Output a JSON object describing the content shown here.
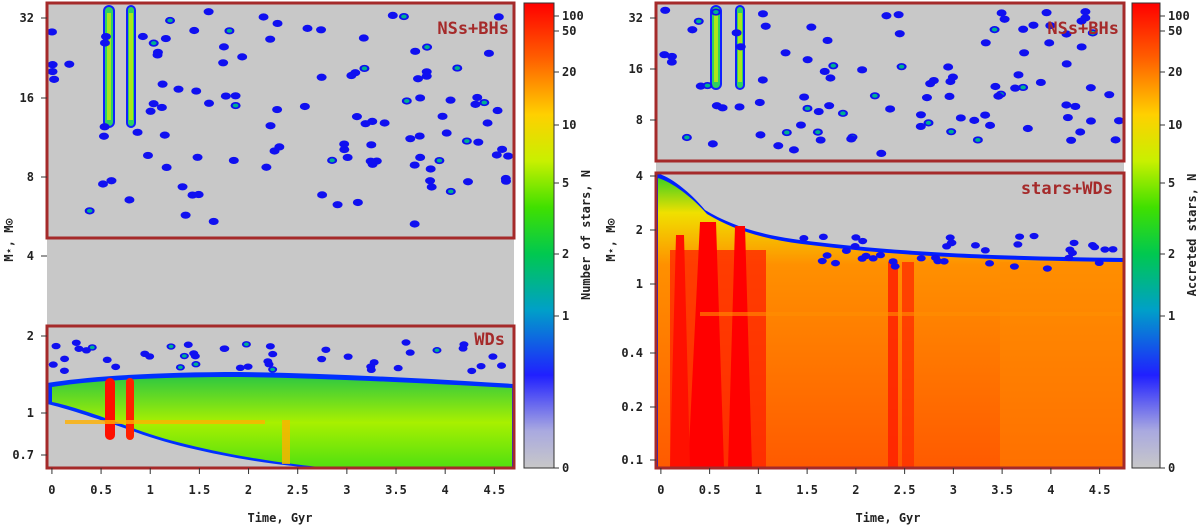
{
  "chart_data": [
    {
      "type": "heatmap",
      "panel": "left",
      "xlabel": "Time, Gyr",
      "ylabel": "M⋆, M⊙",
      "xlim": [
        -0.05,
        4.7
      ],
      "x_ticks": [
        "0",
        "0.5",
        "1",
        "1.5",
        "2",
        "2.5",
        "3",
        "3.5",
        "4",
        "4.5"
      ],
      "x_tick_values": [
        0,
        0.5,
        1,
        1.5,
        2,
        2.5,
        3,
        3.5,
        4,
        4.5
      ],
      "y_ticks": [
        "32",
        "16",
        "8",
        "4",
        "2",
        "1",
        "0.7"
      ],
      "y_tick_values": [
        32,
        16,
        8,
        4,
        2,
        1,
        0.7
      ],
      "yscale": "log",
      "ylim": [
        0.6,
        35
      ],
      "regions": [
        {
          "label": "NSs+BHs",
          "mass_range": [
            4.4,
            35
          ]
        },
        {
          "label": "WDs",
          "mass_range": [
            0.6,
            2.1
          ]
        }
      ],
      "colorbar": {
        "label": "Number of stars, N",
        "ticks": [
          "0",
          "1",
          "2",
          "5",
          "10",
          "20",
          "50",
          "100"
        ],
        "tick_values": [
          0,
          1,
          2,
          5,
          10,
          20,
          50,
          100
        ]
      }
    },
    {
      "type": "heatmap",
      "panel": "right",
      "xlabel": "Time, Gyr",
      "ylabel": "M⋆, M⊙",
      "xlim": [
        -0.05,
        4.75
      ],
      "x_ticks": [
        "0",
        "0.5",
        "1",
        "1.5",
        "2",
        "2.5",
        "3",
        "3.5",
        "4",
        "4.5"
      ],
      "x_tick_values": [
        0,
        0.5,
        1,
        1.5,
        2,
        2.5,
        3,
        3.5,
        4,
        4.5
      ],
      "y_ticks_top": [
        "32",
        "16",
        "8"
      ],
      "y_tick_values_top": [
        32,
        16,
        8
      ],
      "y_ticks_bottom": [
        "4",
        "2",
        "1",
        "0.4",
        "0.2",
        "0.1"
      ],
      "y_tick_values_bottom": [
        4,
        2,
        1,
        0.4,
        0.2,
        0.1
      ],
      "yscale": "log",
      "regions": [
        {
          "label": "NSs+BHs",
          "mass_range": [
            4.4,
            35
          ]
        },
        {
          "label": "stars+WDs",
          "mass_range": [
            0.09,
            4
          ]
        }
      ],
      "colorbar": {
        "label": "Accreted stars, N",
        "ticks": [
          "0",
          "1",
          "2",
          "5",
          "10",
          "20",
          "50",
          "100"
        ],
        "tick_values": [
          0,
          1,
          2,
          5,
          10,
          20,
          50,
          100
        ]
      }
    }
  ]
}
